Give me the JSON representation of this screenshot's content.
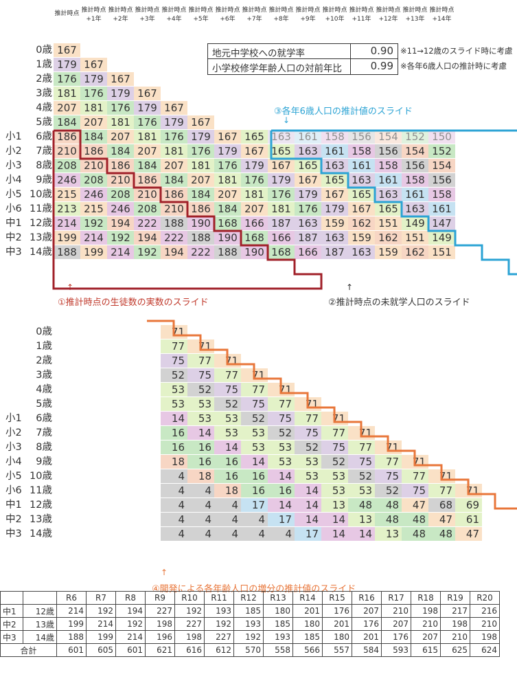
{
  "header_labels": [
    {
      "l1": "推計時点",
      "l2": ""
    },
    {
      "l1": "推計時点",
      "l2": "+1年"
    },
    {
      "l1": "推計時点",
      "l2": "+2年"
    },
    {
      "l1": "推計時点",
      "l2": "+3年"
    },
    {
      "l1": "推計時点",
      "l2": "+4年"
    },
    {
      "l1": "推計時点",
      "l2": "+5年"
    },
    {
      "l1": "推計時点",
      "l2": "+6年"
    },
    {
      "l1": "推計時点",
      "l2": "+7年"
    },
    {
      "l1": "推計時点",
      "l2": "+8年"
    },
    {
      "l1": "推計時点",
      "l2": "+9年"
    },
    {
      "l1": "推計時点",
      "l2": "+10年"
    },
    {
      "l1": "推計時点",
      "l2": "+11年"
    },
    {
      "l1": "推計時点",
      "l2": "+12年"
    },
    {
      "l1": "推計時点",
      "l2": "+13年"
    },
    {
      "l1": "推計時点",
      "l2": "+14年"
    }
  ],
  "rows": [
    {
      "grade": "",
      "age": "0歳"
    },
    {
      "grade": "",
      "age": "1歳"
    },
    {
      "grade": "",
      "age": "2歳"
    },
    {
      "grade": "",
      "age": "3歳"
    },
    {
      "grade": "",
      "age": "4歳"
    },
    {
      "grade": "",
      "age": "5歳"
    },
    {
      "grade": "小1",
      "age": "6歳"
    },
    {
      "grade": "小2",
      "age": "7歳"
    },
    {
      "grade": "小3",
      "age": "8歳"
    },
    {
      "grade": "小4",
      "age": "9歳"
    },
    {
      "grade": "小5",
      "age": "10歳"
    },
    {
      "grade": "小6",
      "age": "11歳"
    },
    {
      "grade": "中1",
      "age": "12歳"
    },
    {
      "grade": "中2",
      "age": "13歳"
    },
    {
      "grade": "中3",
      "age": "14歳"
    }
  ],
  "upper_table": [
    [
      "167"
    ],
    [
      "179",
      "167"
    ],
    [
      "176",
      "179",
      "167"
    ],
    [
      "181",
      "176",
      "179",
      "167"
    ],
    [
      "207",
      "181",
      "176",
      "179",
      "167"
    ],
    [
      "184",
      "207",
      "181",
      "176",
      "179",
      "167"
    ],
    [
      "186",
      "184",
      "207",
      "181",
      "176",
      "179",
      "167",
      "165",
      "163",
      "161",
      "158",
      "156",
      "154",
      "152",
      "150"
    ],
    [
      "210",
      "186",
      "184",
      "207",
      "181",
      "176",
      "179",
      "167",
      "165",
      "163",
      "161",
      "158",
      "156",
      "154",
      "152"
    ],
    [
      "208",
      "210",
      "186",
      "184",
      "207",
      "181",
      "176",
      "179",
      "167",
      "165",
      "163",
      "161",
      "158",
      "156",
      "154"
    ],
    [
      "246",
      "208",
      "210",
      "186",
      "184",
      "207",
      "181",
      "176",
      "179",
      "167",
      "165",
      "163",
      "161",
      "158",
      "156"
    ],
    [
      "215",
      "246",
      "208",
      "210",
      "186",
      "184",
      "207",
      "181",
      "176",
      "179",
      "167",
      "165",
      "163",
      "161",
      "158"
    ],
    [
      "213",
      "215",
      "246",
      "208",
      "210",
      "186",
      "184",
      "207",
      "181",
      "176",
      "179",
      "167",
      "165",
      "163",
      "161"
    ],
    [
      "214",
      "192",
      "194",
      "222",
      "188",
      "190",
      "168",
      "166",
      "187",
      "163",
      "159",
      "162",
      "151",
      "149",
      "147"
    ],
    [
      "199",
      "214",
      "192",
      "194",
      "222",
      "188",
      "190",
      "168",
      "166",
      "187",
      "163",
      "159",
      "162",
      "151",
      "149"
    ],
    [
      "188",
      "199",
      "214",
      "192",
      "194",
      "222",
      "188",
      "190",
      "168",
      "166",
      "187",
      "163",
      "159",
      "162",
      "151"
    ]
  ],
  "lower_table": [
    [
      "71"
    ],
    [
      "77",
      "71"
    ],
    [
      "75",
      "77",
      "71"
    ],
    [
      "52",
      "75",
      "77",
      "71"
    ],
    [
      "53",
      "52",
      "75",
      "77",
      "71"
    ],
    [
      "53",
      "53",
      "52",
      "75",
      "77",
      "71"
    ],
    [
      "14",
      "53",
      "53",
      "52",
      "75",
      "77",
      "71"
    ],
    [
      "16",
      "14",
      "53",
      "53",
      "52",
      "75",
      "77",
      "71"
    ],
    [
      "16",
      "16",
      "14",
      "53",
      "53",
      "52",
      "75",
      "77",
      "71"
    ],
    [
      "18",
      "16",
      "16",
      "14",
      "53",
      "53",
      "52",
      "75",
      "77",
      "71"
    ],
    [
      "4",
      "18",
      "16",
      "16",
      "14",
      "53",
      "53",
      "52",
      "75",
      "77",
      "71"
    ],
    [
      "4",
      "4",
      "18",
      "16",
      "16",
      "14",
      "53",
      "53",
      "52",
      "75",
      "77",
      "71"
    ],
    [
      "4",
      "4",
      "4",
      "17",
      "14",
      "14",
      "13",
      "48",
      "48",
      "47",
      "68",
      "69"
    ],
    [
      "4",
      "4",
      "4",
      "4",
      "17",
      "14",
      "14",
      "13",
      "48",
      "48",
      "47",
      "61"
    ],
    [
      "4",
      "4",
      "4",
      "4",
      "4",
      "17",
      "14",
      "14",
      "13",
      "48",
      "48",
      "47"
    ]
  ],
  "info_box": {
    "row1_label": "地元中学校への就学率",
    "row1_value": "0.90",
    "row2_label": "小学校修学年齢人口の対前年比",
    "row2_value": "0.99"
  },
  "notes": {
    "note1": "※11→12歳のスライド時に考慮",
    "note2": "※各年6歳人口の推計時に考慮",
    "note3": "③各年6歳人口の推計値のスライド",
    "note1_upper": "①推計時点の生徒数の実数のスライド",
    "note2_upper": "②推計時点の未就学人口のスライド",
    "note4": "④開発による各年齢人口の増分の推計値のスライド",
    "arrow_down": "↓",
    "arrow_up": "↑"
  },
  "bottom_table": {
    "headers": [
      "R6",
      "R7",
      "R8",
      "R9",
      "R10",
      "R11",
      "R12",
      "R13",
      "R14",
      "R15",
      "R16",
      "R17",
      "R18",
      "R19",
      "R20"
    ],
    "rows": [
      {
        "grade": "中1",
        "age": "12歳",
        "values": [
          "214",
          "192",
          "194",
          "227",
          "192",
          "193",
          "185",
          "180",
          "201",
          "176",
          "207",
          "210",
          "198",
          "217",
          "216"
        ]
      },
      {
        "grade": "中2",
        "age": "13歳",
        "values": [
          "199",
          "214",
          "192",
          "198",
          "227",
          "192",
          "193",
          "185",
          "180",
          "201",
          "176",
          "207",
          "210",
          "198",
          "210"
        ]
      },
      {
        "grade": "中3",
        "age": "14歳",
        "values": [
          "188",
          "199",
          "214",
          "196",
          "198",
          "227",
          "192",
          "193",
          "185",
          "180",
          "201",
          "176",
          "207",
          "210",
          "198"
        ]
      }
    ],
    "total_label": "合計",
    "totals": [
      "601",
      "605",
      "601",
      "621",
      "616",
      "612",
      "570",
      "558",
      "566",
      "557",
      "584",
      "593",
      "615",
      "625",
      "624"
    ]
  },
  "palette": [
    "#c8e8c4",
    "#c6e2f2",
    "#f7d6c4",
    "#ddd0e6",
    "#d2d2d2",
    "#e3f2c8",
    "#e7c8e4",
    "#fae1c6"
  ]
}
